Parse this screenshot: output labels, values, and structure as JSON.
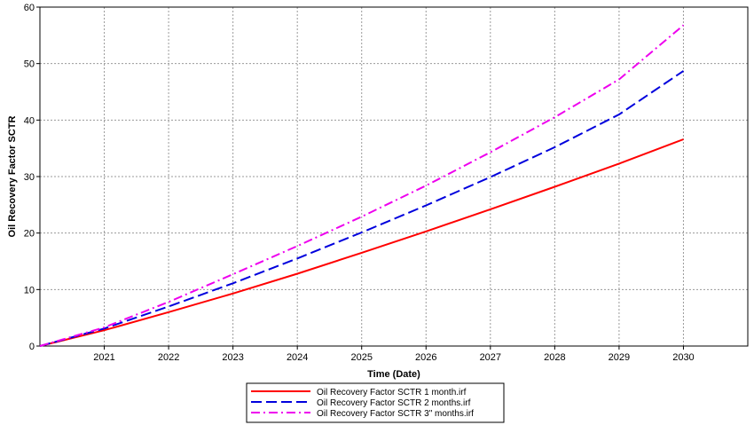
{
  "chart_data": {
    "type": "line",
    "title": "",
    "xlabel": "Time (Date)",
    "ylabel": "Oil Recovery Factor SCTR",
    "xlim": [
      2020.0,
      2031.0
    ],
    "ylim": [
      0,
      60
    ],
    "x_ticks": [
      "2021",
      "2022",
      "2023",
      "2024",
      "2025",
      "2026",
      "2027",
      "2028",
      "2029",
      "2030"
    ],
    "y_ticks": [
      "0",
      "10",
      "20",
      "30",
      "40",
      "50",
      "60"
    ],
    "grid": true,
    "legend_position": "bottom-center",
    "series": [
      {
        "name": "Oil Recovery Factor SCTR 1 month.irf",
        "color": "#ff0000",
        "dash": "solid",
        "x": [
          2020.0,
          2021.0,
          2022.0,
          2023.0,
          2024.0,
          2025.0,
          2026.0,
          2027.0,
          2028.0,
          2029.0,
          2030.0
        ],
        "y": [
          0,
          2.8,
          6.0,
          9.3,
          12.8,
          16.5,
          20.3,
          24.2,
          28.2,
          32.3,
          36.6
        ]
      },
      {
        "name": "Oil Recovery Factor SCTR 2 months.irf",
        "color": "#0000dd",
        "dash": "dash",
        "x": [
          2020.0,
          2021.0,
          2022.0,
          2023.0,
          2024.0,
          2025.0,
          2026.0,
          2027.0,
          2028.0,
          2029.0,
          2030.0
        ],
        "y": [
          0,
          3.1,
          7.0,
          11.1,
          15.5,
          20.1,
          24.9,
          29.9,
          35.2,
          41.0,
          48.7
        ]
      },
      {
        "name": "Oil Recovery Factor SCTR 3\" months.irf",
        "color": "#ee00ee",
        "dash": "dashdot",
        "x": [
          2020.0,
          2021.0,
          2022.0,
          2023.0,
          2024.0,
          2025.0,
          2026.0,
          2027.0,
          2028.0,
          2029.0,
          2030.0
        ],
        "y": [
          0,
          3.3,
          7.8,
          12.7,
          17.7,
          22.9,
          28.4,
          34.3,
          40.5,
          47.2,
          56.8
        ]
      }
    ]
  }
}
